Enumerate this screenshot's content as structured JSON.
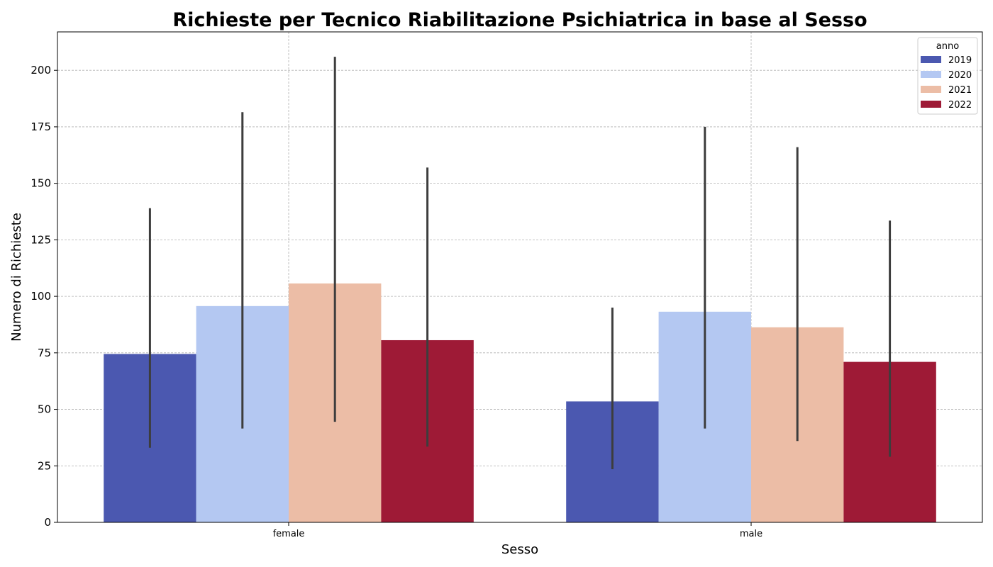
{
  "chart_data": {
    "type": "bar",
    "title": "Richieste per Tecnico Riabilitazione Psichiatrica in base al Sesso",
    "xlabel": "Sesso",
    "ylabel": "Numero di Richieste",
    "categories": [
      "female",
      "male"
    ],
    "ylim": [
      0,
      217
    ],
    "yticks": [
      0,
      25,
      50,
      75,
      100,
      125,
      150,
      175,
      200
    ],
    "grid": true,
    "legend": {
      "title": "anno",
      "placement": "top-right"
    },
    "series": [
      {
        "name": "2019",
        "color": "#4b58b0",
        "values": [
          74.5,
          53.5
        ],
        "err_low": [
          33,
          23.5
        ],
        "err_high": [
          139,
          95
        ]
      },
      {
        "name": "2020",
        "color": "#b4c8f2",
        "values": [
          95.7,
          93.2
        ],
        "err_low": [
          41.5,
          41.5
        ],
        "err_high": [
          181.5,
          175
        ]
      },
      {
        "name": "2021",
        "color": "#ecbda6",
        "values": [
          105.7,
          86.3
        ],
        "err_low": [
          44.5,
          36
        ],
        "err_high": [
          206,
          166
        ]
      },
      {
        "name": "2022",
        "color": "#9e1a36",
        "values": [
          80.6,
          71
        ],
        "err_low": [
          33.5,
          29
        ],
        "err_high": [
          157,
          133.5
        ]
      }
    ]
  }
}
